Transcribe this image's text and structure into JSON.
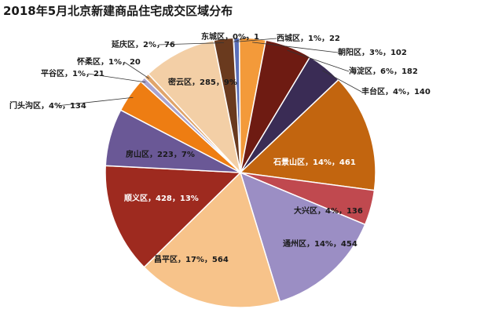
{
  "chart_data": {
    "type": "pie",
    "title": "2018年5月北京新建商品住宅成交区域分布",
    "slices": [
      {
        "name": "东城区",
        "value": 1,
        "label": "东城区，0%，1",
        "color": "#2b2b2b"
      },
      {
        "name": "西城区",
        "value": 22,
        "label": "西城区，1%，22",
        "color": "#5a6fb8"
      },
      {
        "name": "朝阳区",
        "value": 102,
        "label": "朝阳区，3%，102",
        "color": "#f39a3a"
      },
      {
        "name": "海淀区",
        "value": 182,
        "label": "海淀区，6%，182",
        "color": "#6e1b12"
      },
      {
        "name": "丰台区",
        "value": 140,
        "label": "丰台区，4%，140",
        "color": "#3a2c55"
      },
      {
        "name": "石景山区",
        "value": 461,
        "label": "石景山区，14%，461",
        "color": "#c2650f"
      },
      {
        "name": "大兴区",
        "value": 136,
        "label": "大兴区，4%，136",
        "color": "#c0494f"
      },
      {
        "name": "通州区",
        "value": 454,
        "label": "通州区，14%，454",
        "color": "#9b8ec4"
      },
      {
        "name": "昌平区",
        "value": 564,
        "label": "昌平区，17%，564",
        "color": "#f7c38a"
      },
      {
        "name": "顺义区",
        "value": 428,
        "label": "顺义区，428，13%",
        "color": "#9e2a1f"
      },
      {
        "name": "房山区",
        "value": 223,
        "label": "房山区，223，7%",
        "color": "#6a5896"
      },
      {
        "name": "门头沟区",
        "value": 134,
        "label": "门头沟区，4%，134",
        "color": "#ee7d12"
      },
      {
        "name": "平谷区",
        "value": 21,
        "label": "平谷区，1%，21",
        "color": "#a9a3cf"
      },
      {
        "name": "怀柔区",
        "value": 20,
        "label": "怀柔区，1%，20",
        "color": "#e0a46a"
      },
      {
        "name": "密云区",
        "value": 285,
        "label": "密云区，285，9%",
        "color": "#f3cfa6"
      },
      {
        "name": "延庆区",
        "value": 76,
        "label": "延庆区，2%，76",
        "color": "#6a3a1e"
      }
    ]
  }
}
